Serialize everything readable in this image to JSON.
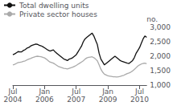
{
  "chart_data": {
    "type": "line",
    "ylabel": "no.",
    "categories": [
      "Jul\n2004",
      null,
      null,
      null,
      null,
      null,
      null,
      null,
      null,
      null,
      null,
      null,
      null,
      null,
      null,
      null,
      null,
      null,
      "Jan\n2006",
      null,
      null,
      null,
      null,
      null,
      null,
      null,
      null,
      null,
      null,
      null,
      null,
      null,
      null,
      null,
      null,
      null,
      "Jul\n2007",
      null,
      null,
      null,
      null,
      null,
      null,
      null,
      null,
      null,
      null,
      null,
      null,
      null,
      null,
      null,
      null,
      null,
      "Jan\n2009",
      null,
      null,
      null,
      null,
      null,
      null,
      null,
      null,
      null,
      null,
      null,
      null,
      null,
      null,
      null,
      null,
      null,
      "Jul\n2010",
      null,
      null,
      null,
      null
    ],
    "series": [
      {
        "name": "Total dwelling units",
        "color": "#111111",
        "values": [
          2050,
          2080,
          2120,
          2160,
          2150,
          2150,
          2200,
          2230,
          2280,
          2300,
          2350,
          2380,
          2400,
          2420,
          2410,
          2380,
          2360,
          2330,
          2290,
          2250,
          2210,
          2180,
          2200,
          2220,
          2150,
          2100,
          2050,
          2000,
          1950,
          1900,
          1880,
          1850,
          1900,
          1920,
          1950,
          2000,
          2050,
          2150,
          2250,
          2350,
          2500,
          2600,
          2650,
          2700,
          2750,
          2800,
          2700,
          2550,
          2400,
          2100,
          1900,
          1800,
          1700,
          1750,
          1800,
          1850,
          1900,
          1950,
          2000,
          1950,
          1900,
          1850,
          1820,
          1800,
          1780,
          1760,
          1750,
          1800,
          1850,
          1950,
          2100,
          2200,
          2300,
          2450,
          2600,
          2700,
          2650
        ]
      },
      {
        "name": "Private sector houses",
        "color": "#aaaaaa",
        "values": [
          1700,
          1720,
          1750,
          1780,
          1790,
          1800,
          1820,
          1840,
          1870,
          1900,
          1920,
          1950,
          1970,
          1990,
          2000,
          1990,
          1980,
          1960,
          1940,
          1900,
          1850,
          1800,
          1780,
          1760,
          1720,
          1680,
          1640,
          1620,
          1600,
          1580,
          1570,
          1560,
          1580,
          1600,
          1620,
          1650,
          1680,
          1720,
          1760,
          1800,
          1840,
          1900,
          1940,
          1960,
          1970,
          1980,
          1950,
          1900,
          1840,
          1700,
          1550,
          1450,
          1380,
          1350,
          1320,
          1310,
          1300,
          1290,
          1290,
          1280,
          1290,
          1300,
          1320,
          1340,
          1370,
          1400,
          1420,
          1450,
          1490,
          1540,
          1600,
          1660,
          1700,
          1730,
          1750,
          1760,
          1740
        ]
      }
    ],
    "ylim": [
      1000,
      3000
    ],
    "yticks": [
      1000,
      1500,
      2000,
      2500,
      3000
    ],
    "grid": false,
    "legend": "upper left"
  }
}
